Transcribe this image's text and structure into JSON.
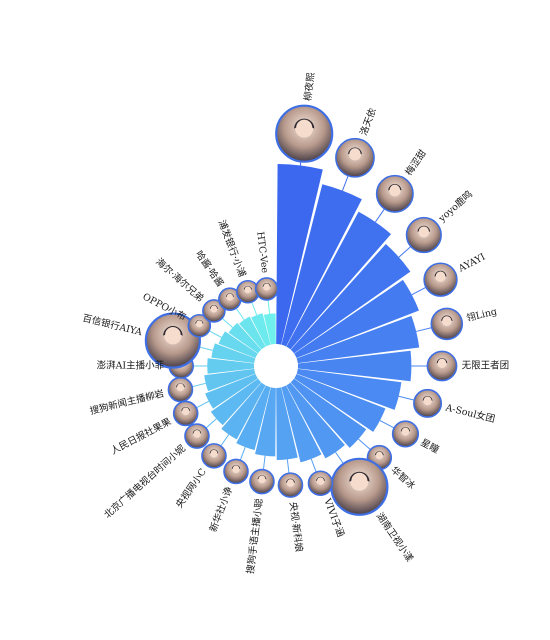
{
  "chart_data": {
    "type": "bar",
    "subtype": "radial-bar",
    "title": "",
    "xlabel": "",
    "ylabel": "",
    "grid": false,
    "legend": "none",
    "colors": {
      "start": "#3c68f0",
      "mid": "#56a4f3",
      "end": "#6ff0ec",
      "ring": "#3f6fe4",
      "line": "#5b8de8"
    },
    "categories": [
      "柳夜熙",
      "洛天依",
      "梅涩甜",
      "yoyo鹿鸣",
      "AYAYI",
      "翎Ling",
      "无限王者团",
      "A-Soul女团",
      "星瞳",
      "华智冰",
      "湖南卫视小漾",
      "VIVI子涵",
      "央视·新科娘",
      "搜狗手语主播小聪",
      "新华社小诤",
      "央视网小C",
      "北京广播电视台时间小妮",
      "人民日报社果果",
      "搜狗新闻主播柳岩",
      "澎湃AI主播小菲",
      "百信银行AIYA",
      "OPPO小布",
      "海尔·海尔兄弟",
      "哈酱·哈酱",
      "浦发银行·小浦",
      "HTC-Vee"
    ],
    "values": [
      100,
      92,
      85,
      79,
      73,
      68,
      63,
      58,
      53,
      49,
      46,
      43,
      40,
      38,
      36,
      34,
      32,
      30,
      28,
      26,
      24,
      22,
      20,
      19,
      18,
      17
    ]
  }
}
